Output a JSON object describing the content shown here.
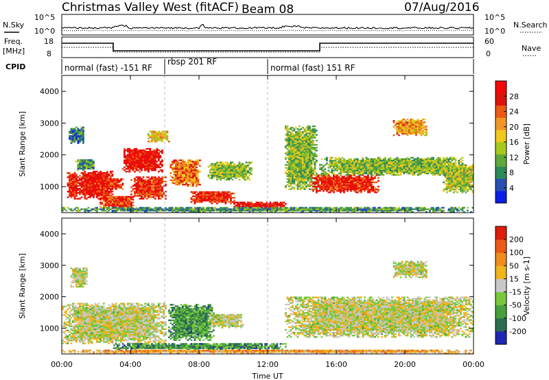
{
  "header": {
    "site": "Christmas Valley West (fitACF)",
    "beam": "Beam 08",
    "date": "07/Aug/2016"
  },
  "strip": {
    "sky_label": "N.Sky",
    "search_label": "N.Search",
    "sky_ticks": [
      "10^5",
      "10^0"
    ],
    "search_ticks": [
      "10^5",
      "10^0"
    ],
    "freq_label_top": "Freq.",
    "freq_label_bottom": "[MHz]",
    "freq_ticks": [
      "18",
      "8"
    ],
    "nave_label": "Nave",
    "nave_ticks": [
      "60",
      "0"
    ],
    "cpid_label": "CPID",
    "modes": [
      {
        "name": "normal (fast) -151 RF",
        "start_hour": 0,
        "end_hour": 6
      },
      {
        "name": "rbsp 201 RF",
        "start_hour": 6,
        "end_hour": 12
      },
      {
        "name": "normal (fast) 151 RF",
        "start_hour": 12,
        "end_hour": 24
      }
    ]
  },
  "chart_data": [
    {
      "type": "heatmap",
      "panel": "power",
      "ylabel": "Slant Range [km]",
      "xlabel": "",
      "xlim": [
        0,
        24
      ],
      "ylim": [
        180,
        4500
      ],
      "x_ticks": [
        "00:00",
        "04:00",
        "08:00",
        "12:00",
        "16:00",
        "20:00",
        "00:00"
      ],
      "y_ticks": [
        1000,
        2000,
        3000,
        4000
      ],
      "colorbar": {
        "label": "Power [dB]",
        "ticks": [
          "4",
          "8",
          "12",
          "16",
          "20",
          "24",
          "28"
        ],
        "colors": [
          "#0a1ee6",
          "#2850b4",
          "#2d8a5a",
          "#5fa83c",
          "#a8c81e",
          "#f0c81e",
          "#f09628",
          "#eb5a14",
          "#dc140a",
          "#f00a0a"
        ]
      },
      "regions": [
        {
          "t0": 0.3,
          "t1": 0.9,
          "r0": 600,
          "r1": 1450,
          "level": 0.85
        },
        {
          "t0": 0.9,
          "t1": 3.0,
          "r0": 600,
          "r1": 1500,
          "level": 0.9
        },
        {
          "t0": 0.8,
          "t1": 1.9,
          "r0": 1500,
          "r1": 1850,
          "level": 0.3
        },
        {
          "t0": 0.4,
          "t1": 1.3,
          "r0": 2350,
          "r1": 2850,
          "level": 0.25
        },
        {
          "t0": 1.6,
          "t1": 3.6,
          "r0": 900,
          "r1": 1250,
          "level": 0.85
        },
        {
          "t0": 2.2,
          "t1": 4.2,
          "r0": 300,
          "r1": 700,
          "level": 0.8
        },
        {
          "t0": 3.5,
          "t1": 5.8,
          "r0": 1450,
          "r1": 2200,
          "level": 0.9
        },
        {
          "t0": 4.0,
          "t1": 6.0,
          "r0": 600,
          "r1": 1300,
          "level": 0.85
        },
        {
          "t0": 5.0,
          "t1": 6.2,
          "r0": 2400,
          "r1": 2750,
          "level": 0.55
        },
        {
          "t0": 6.3,
          "t1": 8.0,
          "r0": 1000,
          "r1": 1850,
          "level": 0.7
        },
        {
          "t0": 7.5,
          "t1": 10.0,
          "r0": 450,
          "r1": 850,
          "level": 0.85
        },
        {
          "t0": 8.5,
          "t1": 11.0,
          "r0": 1200,
          "r1": 1750,
          "level": 0.4
        },
        {
          "t0": 10.0,
          "t1": 13.0,
          "r0": 300,
          "r1": 500,
          "level": 0.9
        },
        {
          "t0": 13.0,
          "t1": 14.8,
          "r0": 900,
          "r1": 2900,
          "level": 0.4
        },
        {
          "t0": 14.5,
          "t1": 18.5,
          "r0": 800,
          "r1": 1350,
          "level": 0.85
        },
        {
          "t0": 15.0,
          "t1": 23.5,
          "r0": 1350,
          "r1": 1900,
          "level": 0.4
        },
        {
          "t0": 19.3,
          "t1": 21.3,
          "r0": 2600,
          "r1": 3100,
          "level": 0.65
        },
        {
          "t0": 22.2,
          "t1": 24.0,
          "r0": 800,
          "r1": 1700,
          "level": 0.45
        },
        {
          "t0": 0.0,
          "t1": 24.0,
          "r0": 180,
          "r1": 330,
          "level": 0.3
        }
      ]
    },
    {
      "type": "heatmap",
      "panel": "velocity",
      "ylabel": "Slant Range [km]",
      "xlabel": "Time UT",
      "xlim": [
        0,
        24
      ],
      "ylim": [
        180,
        4500
      ],
      "x_ticks": [
        "00:00",
        "04:00",
        "08:00",
        "12:00",
        "16:00",
        "20:00",
        "00:00"
      ],
      "y_ticks": [
        1000,
        2000,
        3000,
        4000
      ],
      "colorbar": {
        "label": "Velocity [m s-1]",
        "ticks": [
          "200",
          "100",
          "50",
          "15",
          "-15",
          "-50",
          "-100",
          "-200"
        ],
        "colors": [
          "#1e28b4",
          "#2d6e50",
          "#46a03c",
          "#78c83c",
          "#c8c8c8",
          "#f0b41e",
          "#f08c1e",
          "#eb5a14",
          "#dc1e0a"
        ]
      },
      "regions": [
        {
          "t0": 0.0,
          "t1": 6.0,
          "r0": 500,
          "r1": 1800,
          "level": 0.5
        },
        {
          "t0": 0.5,
          "t1": 1.5,
          "r0": 2300,
          "r1": 2900,
          "level": 0.5
        },
        {
          "t0": 6.2,
          "t1": 8.8,
          "r0": 600,
          "r1": 1750,
          "level": 0.28
        },
        {
          "t0": 8.5,
          "t1": 10.5,
          "r0": 1000,
          "r1": 1450,
          "level": 0.5
        },
        {
          "t0": 3.0,
          "t1": 13.0,
          "r0": 300,
          "r1": 500,
          "level": 0.25
        },
        {
          "t0": 13.0,
          "t1": 24.0,
          "r0": 700,
          "r1": 2000,
          "level": 0.5
        },
        {
          "t0": 19.3,
          "t1": 21.3,
          "r0": 2600,
          "r1": 3100,
          "level": 0.5
        },
        {
          "t0": 0.0,
          "t1": 24.0,
          "r0": 180,
          "r1": 300,
          "level": 0.68
        }
      ]
    }
  ]
}
